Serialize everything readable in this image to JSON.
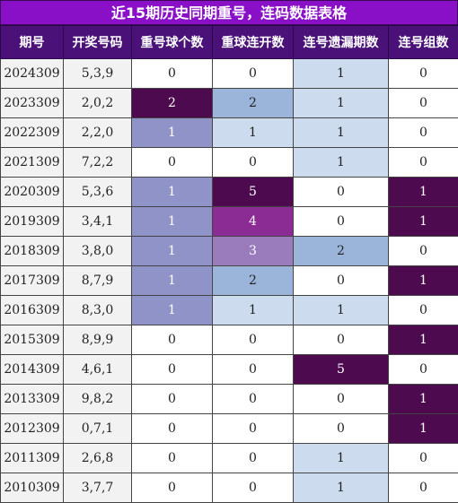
{
  "title": "近15期历史同期重号，连码数据表格",
  "headers": [
    "期号",
    "开奖号码",
    "重号球个数",
    "重球连开数",
    "连号遗漏期数",
    "连号组数"
  ],
  "colors": {
    "title_bg": "#8a10c8",
    "header_bg": "#4a1278",
    "light_blue": "#ccdcee",
    "mid_blue": "#9bb5da",
    "lavender": "#8f93c8",
    "dark_purple": "#4d0a4f",
    "mid_purple": "#8b2c95",
    "light_purple": "#9a7cbd"
  },
  "rows": [
    {
      "period": "2024309",
      "numbers": "5,3,9",
      "repeat_count": "0",
      "repeat_streak": "0",
      "consec_miss": "1",
      "consec_groups": "0"
    },
    {
      "period": "2023309",
      "numbers": "2,0,2",
      "repeat_count": "2",
      "repeat_streak": "2",
      "consec_miss": "1",
      "consec_groups": "0"
    },
    {
      "period": "2022309",
      "numbers": "2,2,0",
      "repeat_count": "1",
      "repeat_streak": "1",
      "consec_miss": "1",
      "consec_groups": "0"
    },
    {
      "period": "2021309",
      "numbers": "7,2,2",
      "repeat_count": "0",
      "repeat_streak": "0",
      "consec_miss": "1",
      "consec_groups": "0"
    },
    {
      "period": "2020309",
      "numbers": "5,3,6",
      "repeat_count": "1",
      "repeat_streak": "5",
      "consec_miss": "0",
      "consec_groups": "1"
    },
    {
      "period": "2019309",
      "numbers": "3,4,1",
      "repeat_count": "1",
      "repeat_streak": "4",
      "consec_miss": "0",
      "consec_groups": "1"
    },
    {
      "period": "2018309",
      "numbers": "3,8,0",
      "repeat_count": "1",
      "repeat_streak": "3",
      "consec_miss": "2",
      "consec_groups": "0"
    },
    {
      "period": "2017309",
      "numbers": "8,7,9",
      "repeat_count": "1",
      "repeat_streak": "2",
      "consec_miss": "0",
      "consec_groups": "1"
    },
    {
      "period": "2016309",
      "numbers": "8,3,0",
      "repeat_count": "1",
      "repeat_streak": "1",
      "consec_miss": "1",
      "consec_groups": "0"
    },
    {
      "period": "2015309",
      "numbers": "8,9,9",
      "repeat_count": "0",
      "repeat_streak": "0",
      "consec_miss": "0",
      "consec_groups": "1"
    },
    {
      "period": "2014309",
      "numbers": "4,6,1",
      "repeat_count": "0",
      "repeat_streak": "0",
      "consec_miss": "5",
      "consec_groups": "0"
    },
    {
      "period": "2013309",
      "numbers": "9,8,2",
      "repeat_count": "0",
      "repeat_streak": "0",
      "consec_miss": "0",
      "consec_groups": "1"
    },
    {
      "period": "2012309",
      "numbers": "0,7,1",
      "repeat_count": "0",
      "repeat_streak": "0",
      "consec_miss": "0",
      "consec_groups": "1"
    },
    {
      "period": "2011309",
      "numbers": "2,6,8",
      "repeat_count": "0",
      "repeat_streak": "0",
      "consec_miss": "1",
      "consec_groups": "0"
    },
    {
      "period": "2010309",
      "numbers": "3,7,7",
      "repeat_count": "0",
      "repeat_streak": "0",
      "consec_miss": "1",
      "consec_groups": "0"
    }
  ]
}
